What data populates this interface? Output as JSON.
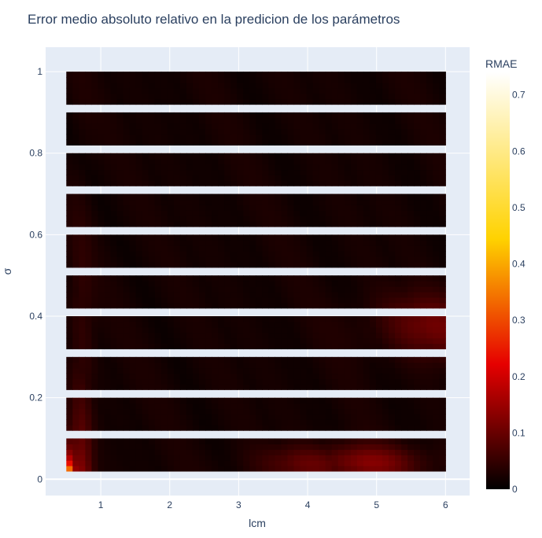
{
  "chart_data": {
    "type": "scatter",
    "title": "Error medio absoluto relativo en la predicion de los parámetros",
    "xlabel": "lcm",
    "ylabel": "σ",
    "xlim": [
      0.2,
      6.35
    ],
    "ylim": [
      -0.04,
      1.06
    ],
    "x_ticks": [
      {
        "value": 1,
        "label": "1"
      },
      {
        "value": 2,
        "label": "2"
      },
      {
        "value": 3,
        "label": "3"
      },
      {
        "value": 4,
        "label": "4"
      },
      {
        "value": 5,
        "label": "5"
      },
      {
        "value": 6,
        "label": "6"
      }
    ],
    "y_ticks": [
      {
        "value": 0,
        "label": "0"
      },
      {
        "value": 0.2,
        "label": "0.2"
      },
      {
        "value": 0.4,
        "label": "0.4"
      },
      {
        "value": 0.6,
        "label": "0.6"
      },
      {
        "value": 0.8,
        "label": "0.8"
      },
      {
        "value": 1,
        "label": "1"
      }
    ],
    "x_range": [
      0.5,
      6.0
    ],
    "bands": [
      {
        "y_from": 0.02,
        "y_to": 0.1
      },
      {
        "y_from": 0.12,
        "y_to": 0.2
      },
      {
        "y_from": 0.22,
        "y_to": 0.3
      },
      {
        "y_from": 0.32,
        "y_to": 0.4
      },
      {
        "y_from": 0.42,
        "y_to": 0.5
      },
      {
        "y_from": 0.52,
        "y_to": 0.6
      },
      {
        "y_from": 0.62,
        "y_to": 0.7
      },
      {
        "y_from": 0.72,
        "y_to": 0.8
      },
      {
        "y_from": 0.82,
        "y_to": 0.9
      },
      {
        "y_from": 0.92,
        "y_to": 1.0
      }
    ],
    "colorscale": "hot",
    "colorbar": {
      "title": "RMAE",
      "range": [
        0,
        0.74
      ],
      "ticks": [
        {
          "value": 0,
          "label": "0"
        },
        {
          "value": 0.1,
          "label": "0.1"
        },
        {
          "value": 0.2,
          "label": "0.2"
        },
        {
          "value": 0.3,
          "label": "0.3"
        },
        {
          "value": 0.4,
          "label": "0.4"
        },
        {
          "value": 0.5,
          "label": "0.5"
        },
        {
          "value": 0.6,
          "label": "0.6"
        },
        {
          "value": 0.7,
          "label": "0.7"
        }
      ]
    },
    "grid": true,
    "plot_bgcolor": "#e5ecf6"
  }
}
